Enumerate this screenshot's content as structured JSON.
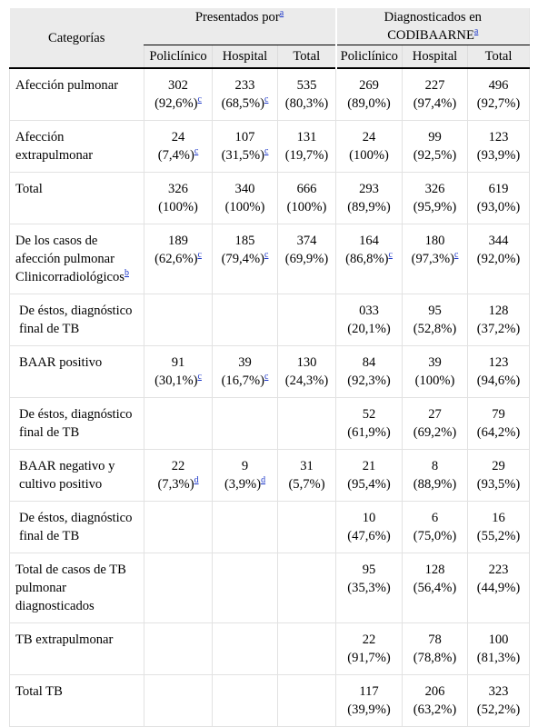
{
  "header": {
    "category_label": "Categorías",
    "group1": {
      "label": "Presentados por",
      "note": "a"
    },
    "group2": {
      "label": "Diagnosticados en CODIBAARNE",
      "note": "a"
    },
    "subcolumns": [
      "Policlínico",
      "Hospital",
      "Total",
      "Policlínico",
      "Hospital",
      "Total"
    ]
  },
  "rows": [
    {
      "label": "Afección pulmonar",
      "cells": [
        {
          "v": "302",
          "p": "(92,6%)",
          "n": "c"
        },
        {
          "v": "233",
          "p": "(68,5%)",
          "n": "c"
        },
        {
          "v": "535",
          "p": "(80,3%)"
        },
        {
          "v": "269",
          "p": "(89,0%)"
        },
        {
          "v": "227",
          "p": "(97,4%)"
        },
        {
          "v": "496",
          "p": "(92,7%)"
        }
      ]
    },
    {
      "label": "Afección extrapulmonar",
      "cells": [
        {
          "v": "24",
          "p": "(7,4%)",
          "n": "c"
        },
        {
          "v": "107",
          "p": "(31,5%)",
          "n": "c"
        },
        {
          "v": "131",
          "p": "(19,7%)"
        },
        {
          "v": "24",
          "p": "(100%)"
        },
        {
          "v": "99",
          "p": "(92,5%)"
        },
        {
          "v": "123",
          "p": "(93,9%)"
        }
      ]
    },
    {
      "label": "Total",
      "cells": [
        {
          "v": "326",
          "p": "(100%)"
        },
        {
          "v": "340",
          "p": "(100%)"
        },
        {
          "v": "666",
          "p": "(100%)"
        },
        {
          "v": "293",
          "p": "(89,9%)"
        },
        {
          "v": "326",
          "p": "(95,9%)"
        },
        {
          "v": "619",
          "p": "(93,0%)"
        }
      ]
    },
    {
      "label": "De los casos de afección pulmonar Clinicorradiológicos",
      "label_note": "b",
      "cells": [
        {
          "v": "189",
          "p": "(62,6%)",
          "n": "c"
        },
        {
          "v": "185",
          "p": "(79,4%)",
          "n": "c"
        },
        {
          "v": "374",
          "p": "(69,9%)"
        },
        {
          "v": "164",
          "p": "(86,8%)",
          "n": "c"
        },
        {
          "v": "180",
          "p": "(97,3%)",
          "n": "c"
        },
        {
          "v": "344",
          "p": "(92,0%)"
        }
      ]
    },
    {
      "label": "De éstos, diagnóstico final de TB",
      "indent": 1,
      "cells": [
        {},
        {},
        {},
        {
          "v": "033",
          "p": "(20,1%)"
        },
        {
          "v": "95",
          "p": "(52,8%)"
        },
        {
          "v": "128",
          "p": "(37,2%)"
        }
      ]
    },
    {
      "label": "BAAR positivo",
      "indent": 1,
      "cells": [
        {
          "v": "91",
          "p": "(30,1%)",
          "n": "c"
        },
        {
          "v": "39",
          "p": "(16,7%)",
          "n": "c"
        },
        {
          "v": "130",
          "p": "(24,3%)"
        },
        {
          "v": "84",
          "p": "(92,3%)"
        },
        {
          "v": "39",
          "p": "(100%)"
        },
        {
          "v": "123",
          "p": "(94,6%)"
        }
      ]
    },
    {
      "label": "De éstos, diagnóstico final de TB",
      "indent": 1,
      "cells": [
        {},
        {},
        {},
        {
          "v": "52",
          "p": "(61,9%)"
        },
        {
          "v": "27",
          "p": "(69,2%)"
        },
        {
          "v": "79",
          "p": "(64,2%)"
        }
      ]
    },
    {
      "label": "BAAR negativo y cultivo positivo",
      "indent": 1,
      "cells": [
        {
          "v": "22",
          "p": "(7,3%)",
          "n": "d"
        },
        {
          "v": "9",
          "p": "(3,9%)",
          "n": "d"
        },
        {
          "v": "31",
          "p": "(5,7%)"
        },
        {
          "v": "21",
          "p": "(95,4%)"
        },
        {
          "v": "8",
          "p": "(88,9%)"
        },
        {
          "v": "29",
          "p": "(93,5%)"
        }
      ]
    },
    {
      "label": "De éstos, diagnóstico final de TB",
      "indent": 1,
      "cells": [
        {},
        {},
        {},
        {
          "v": "10",
          "p": "(47,6%)"
        },
        {
          "v": "6",
          "p": "(75,0%)"
        },
        {
          "v": "16",
          "p": "(55,2%)"
        }
      ]
    },
    {
      "label": "Total de casos de TB pulmonar diagnosticados",
      "cells": [
        {},
        {},
        {},
        {
          "v": "95",
          "p": "(35,3%)"
        },
        {
          "v": "128",
          "p": "(56,4%)"
        },
        {
          "v": "223",
          "p": "(44,9%)"
        }
      ]
    },
    {
      "label": "TB extrapulmonar",
      "cells": [
        {},
        {},
        {},
        {
          "v": "22",
          "p": "(91,7%)"
        },
        {
          "v": "78",
          "p": "(78,8%)"
        },
        {
          "v": "100",
          "p": "(81,3%)"
        }
      ]
    },
    {
      "label": "Total TB",
      "cells": [
        {},
        {},
        {},
        {
          "v": "117",
          "p": "(39,9%)"
        },
        {
          "v": "206",
          "p": "(63,2%)"
        },
        {
          "v": "323",
          "p": "(52,2%)"
        }
      ]
    }
  ],
  "colors": {
    "header_bg": "#ebebeb",
    "link": "#1a35c8",
    "grid": "#e2e2e2"
  }
}
